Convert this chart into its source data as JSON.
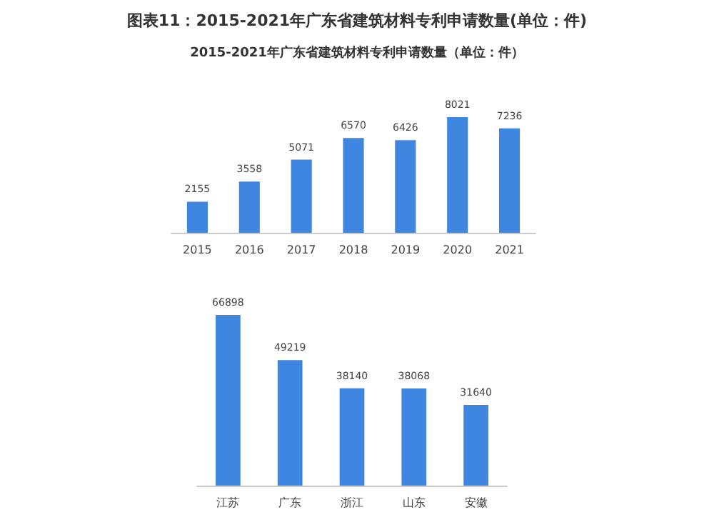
{
  "chart_data": [
    {
      "type": "bar",
      "title": "图表11：2015-2021年广东省建筑材料专利申请数量(单位：件)",
      "subtitle": "2015-2021年广东省建筑材料专利申请数量（单位：件）",
      "categories": [
        "2015",
        "2016",
        "2017",
        "2018",
        "2019",
        "2020",
        "2021"
      ],
      "values": [
        2155,
        3558,
        5071,
        6570,
        6426,
        8021,
        7236
      ],
      "color": "#3f86e0",
      "data_labels": true
    },
    {
      "type": "bar",
      "categories": [
        "江苏",
        "广东",
        "浙江",
        "山东",
        "安徽"
      ],
      "values": [
        66898,
        49219,
        38140,
        38068,
        31640
      ],
      "color": "#3f86e0",
      "data_labels": true
    }
  ]
}
